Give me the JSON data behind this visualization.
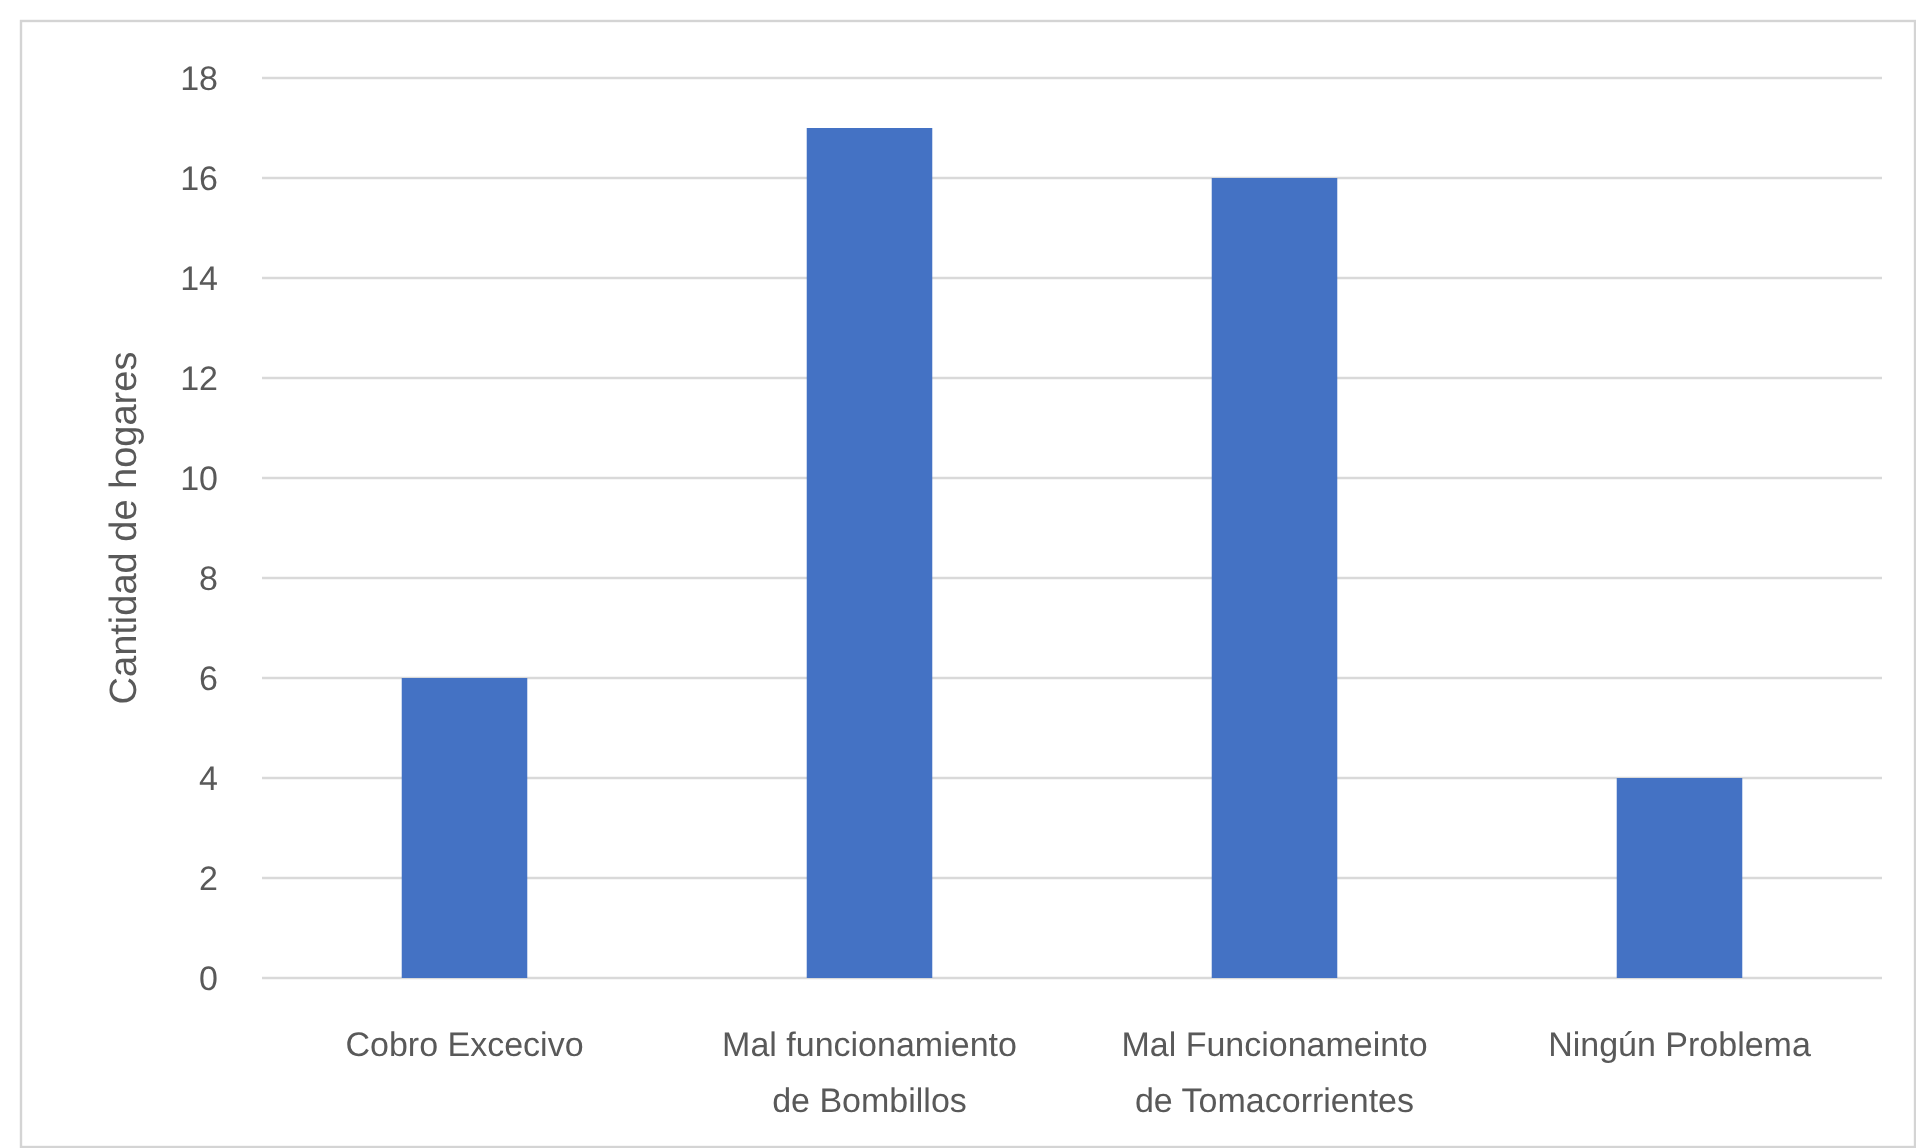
{
  "chart_data": {
    "type": "bar",
    "ylabel": "Cantidad de hogares",
    "categories": [
      "Cobro Excecivo",
      "Mal funcionamiento de Bombillos",
      "Mal Funcionameinto de Tomacorrientes",
      "Ningún Problema"
    ],
    "values": [
      6,
      17,
      16,
      4
    ],
    "color": "#4472c4",
    "ylim": [
      0,
      18
    ],
    "yticks": [
      0,
      2,
      4,
      6,
      8,
      10,
      12,
      14,
      16,
      18
    ],
    "grid": "y"
  }
}
